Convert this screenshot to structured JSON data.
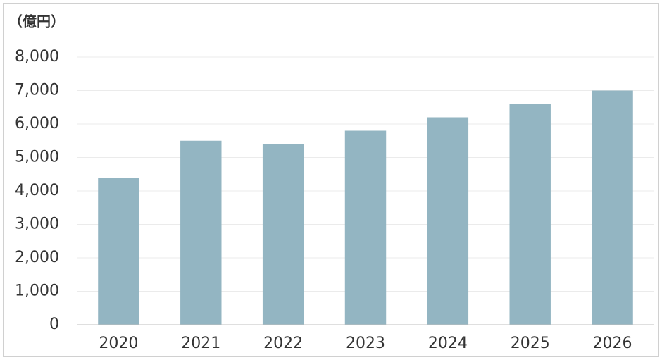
{
  "chart_data": {
    "type": "bar",
    "y_label": "（億円）",
    "categories": [
      "2020",
      "2021",
      "2022",
      "2023",
      "2024",
      "2025",
      "2026"
    ],
    "values": [
      4400,
      5500,
      5400,
      5800,
      6200,
      6600,
      7000
    ],
    "color": "#93b5c2",
    "ylim": [
      0,
      8000
    ],
    "yticks": [
      0,
      {
        "value": 1000,
        "label": "1,000"
      },
      {
        "value": 2000,
        "label": "2,000"
      },
      {
        "value": 3000,
        "label": "3,000"
      },
      {
        "value": 4000,
        "label": "4,000"
      },
      {
        "value": 5000,
        "label": "5,000"
      },
      {
        "value": 6000,
        "label": "6,000"
      },
      {
        "value": 7000,
        "label": "7,000"
      },
      {
        "value": 8000,
        "label": "8,000"
      }
    ],
    "grid": true
  }
}
